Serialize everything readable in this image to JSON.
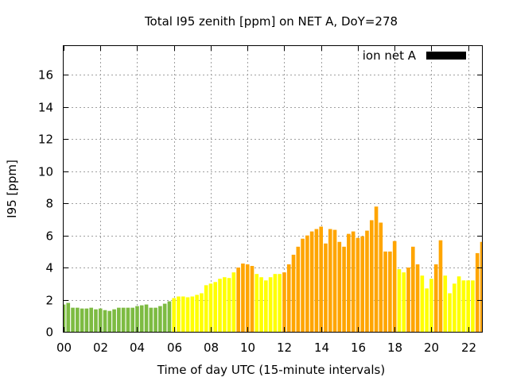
{
  "chart_data": {
    "type": "bar",
    "title": "Total I95 zenith [ppm] on NET A, DoY=278",
    "xlabel": "Time of day UTC (15-minute intervals)",
    "ylabel": "I95 [ppm]",
    "ylim": [
      0,
      17.8
    ],
    "xlim": [
      0,
      22.75
    ],
    "grid": true,
    "legend": {
      "position": "top-right",
      "label": "ion net A",
      "color": "#000000"
    },
    "x_ticks": [
      "00",
      "02",
      "04",
      "06",
      "08",
      "10",
      "12",
      "14",
      "16",
      "18",
      "20",
      "22"
    ],
    "y_ticks": [
      "0",
      "2",
      "4",
      "6",
      "8",
      "10",
      "12",
      "14",
      "16"
    ],
    "bar_width_hours": 0.2,
    "colors": {
      "green": "#7dbb42",
      "yellow": "#ffff00",
      "orange": "#ffa500"
    },
    "series": [
      {
        "values": [
          1.7,
          1.8,
          1.5,
          1.5,
          1.45,
          1.45,
          1.5,
          1.4,
          1.45,
          1.35,
          1.3,
          1.4,
          1.5,
          1.5,
          1.5,
          1.5,
          1.6,
          1.65,
          1.7,
          1.5,
          1.5,
          1.6,
          1.75,
          1.9,
          2.1,
          2.2,
          2.2,
          2.15,
          2.2,
          2.3,
          2.4,
          2.9,
          3.0,
          3.1,
          3.3,
          3.4,
          3.35,
          3.7,
          4.0,
          4.25,
          4.2,
          4.1,
          3.6,
          3.4,
          3.2,
          3.4,
          3.6,
          3.6,
          3.7,
          4.2,
          4.8,
          5.3,
          5.8,
          6.0,
          6.25,
          6.4,
          6.55,
          5.5,
          6.4,
          6.35,
          5.6,
          5.3,
          6.1,
          6.25,
          5.85,
          5.95,
          6.3,
          6.95,
          7.8,
          6.8,
          5.0,
          5.0,
          5.65,
          3.9,
          3.7,
          4.0,
          5.3,
          4.2,
          3.5,
          2.7,
          3.3,
          4.2,
          5.7,
          3.5,
          2.4,
          3.0,
          3.45,
          3.2,
          3.2,
          3.2,
          4.9,
          5.6
        ],
        "colors": [
          "green",
          "green",
          "green",
          "green",
          "green",
          "green",
          "green",
          "green",
          "green",
          "green",
          "green",
          "green",
          "green",
          "green",
          "green",
          "green",
          "green",
          "green",
          "green",
          "green",
          "green",
          "green",
          "green",
          "green",
          "yellow",
          "yellow",
          "yellow",
          "yellow",
          "yellow",
          "yellow",
          "yellow",
          "yellow",
          "yellow",
          "yellow",
          "yellow",
          "yellow",
          "yellow",
          "yellow",
          "orange",
          "orange",
          "orange",
          "orange",
          "yellow",
          "yellow",
          "yellow",
          "yellow",
          "yellow",
          "yellow",
          "orange",
          "orange",
          "orange",
          "orange",
          "orange",
          "orange",
          "orange",
          "orange",
          "orange",
          "orange",
          "orange",
          "orange",
          "orange",
          "orange",
          "orange",
          "orange",
          "orange",
          "orange",
          "orange",
          "orange",
          "orange",
          "orange",
          "orange",
          "orange",
          "orange",
          "yellow",
          "yellow",
          "orange",
          "orange",
          "orange",
          "yellow",
          "yellow",
          "yellow",
          "orange",
          "orange",
          "yellow",
          "yellow",
          "yellow",
          "yellow",
          "yellow",
          "yellow",
          "yellow",
          "orange",
          "orange"
        ]
      }
    ]
  }
}
